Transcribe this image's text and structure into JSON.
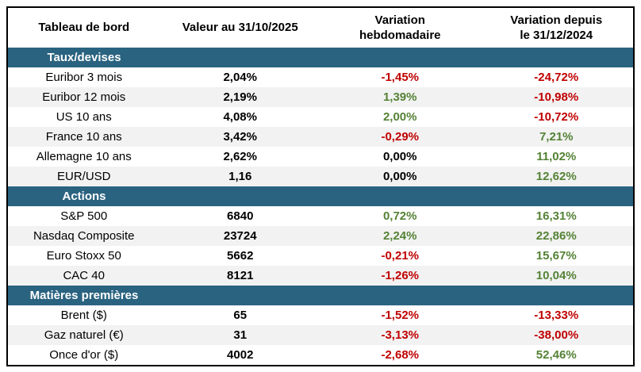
{
  "chart_data": {
    "type": "table",
    "title": "Tableau de bord",
    "columns": [
      "Tableau de bord",
      "Valeur au 31/10/2025",
      "Variation\nhebdomadaire",
      "Variation depuis\nle 31/12/2024"
    ],
    "colors": {
      "section_bg": "#2A6380",
      "stripe_bg": "#F2F2F2",
      "negative": "#C00000",
      "positive": "#548235",
      "header_text": "#000000",
      "section_text": "#FFFFFF",
      "border": "#000000"
    },
    "sections": [
      {
        "title": "Taux/devises",
        "rows": [
          {
            "label": "Euribor 3 mois",
            "value": "2,04%",
            "weekly": "-1,45%",
            "weekly_trend": "negative",
            "ytd": "-24,72%",
            "ytd_trend": "negative"
          },
          {
            "label": "Euribor 12 mois",
            "value": "2,19%",
            "weekly": "1,39%",
            "weekly_trend": "positive",
            "ytd": "-10,98%",
            "ytd_trend": "negative"
          },
          {
            "label": "US 10 ans",
            "value": "4,08%",
            "weekly": "2,00%",
            "weekly_trend": "positive",
            "ytd": "-10,72%",
            "ytd_trend": "negative"
          },
          {
            "label": "France 10 ans",
            "value": "3,42%",
            "weekly": "-0,29%",
            "weekly_trend": "negative",
            "ytd": "7,21%",
            "ytd_trend": "positive"
          },
          {
            "label": "Allemagne 10 ans",
            "value": "2,62%",
            "weekly": "0,00%",
            "weekly_trend": "neutral",
            "ytd": "11,02%",
            "ytd_trend": "positive"
          },
          {
            "label": "EUR/USD",
            "value": "1,16",
            "weekly": "0,00%",
            "weekly_trend": "neutral",
            "ytd": "12,62%",
            "ytd_trend": "positive"
          }
        ]
      },
      {
        "title": "Actions",
        "rows": [
          {
            "label": "S&P 500",
            "value": "6840",
            "weekly": "0,72%",
            "weekly_trend": "positive",
            "ytd": "16,31%",
            "ytd_trend": "positive"
          },
          {
            "label": "Nasdaq Composite",
            "value": "23724",
            "weekly": "2,24%",
            "weekly_trend": "positive",
            "ytd": "22,86%",
            "ytd_trend": "positive"
          },
          {
            "label": "Euro Stoxx 50",
            "value": "5662",
            "weekly": "-0,21%",
            "weekly_trend": "negative",
            "ytd": "15,67%",
            "ytd_trend": "positive"
          },
          {
            "label": "CAC 40",
            "value": "8121",
            "weekly": "-1,26%",
            "weekly_trend": "negative",
            "ytd": "10,04%",
            "ytd_trend": "positive"
          }
        ]
      },
      {
        "title": "Matières premières",
        "rows": [
          {
            "label": "Brent ($)",
            "value": "65",
            "weekly": "-1,52%",
            "weekly_trend": "negative",
            "ytd": "-13,33%",
            "ytd_trend": "negative"
          },
          {
            "label": "Gaz naturel (€)",
            "value": "31",
            "weekly": "-3,13%",
            "weekly_trend": "negative",
            "ytd": "-38,00%",
            "ytd_trend": "negative"
          },
          {
            "label": "Once d'or ($)",
            "value": "4002",
            "weekly": "-2,68%",
            "weekly_trend": "negative",
            "ytd": "52,46%",
            "ytd_trend": "positive"
          }
        ]
      }
    ]
  }
}
